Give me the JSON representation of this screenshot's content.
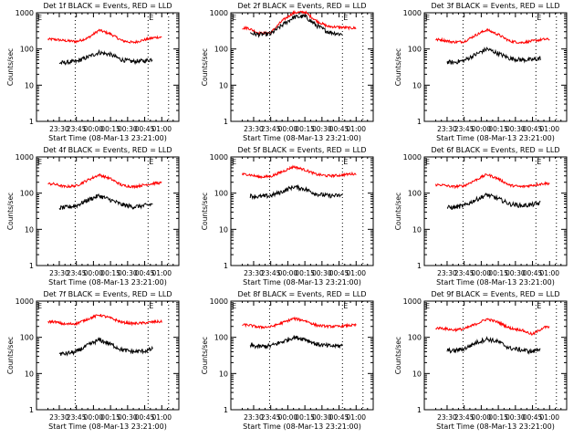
{
  "shared": {
    "ylabel": "Counts/sec",
    "xlabel": "Start Time (08-Mar-13 23:21:00)",
    "x_tick_labels": [
      "23:30",
      "23:45",
      "00:00",
      "00:15",
      "00:30",
      "00:45",
      "01:00"
    ],
    "y_tick_labels": [
      "1",
      "10",
      "100",
      "1000"
    ],
    "marker_label": "E",
    "colors": {
      "events": "#000000",
      "lld": "#ff0000"
    }
  },
  "chart_data": [
    {
      "type": "line",
      "title": "Det 1f BLACK = Events, RED = LLD",
      "x": [
        -5,
        5,
        15,
        25,
        35,
        45,
        55,
        65,
        75,
        85
      ],
      "series": [
        {
          "name": "Events",
          "color": "#000000",
          "x_range": [
            0,
            82
          ],
          "values": [
            40,
            42,
            45,
            60,
            80,
            70,
            50,
            45,
            47,
            55
          ]
        },
        {
          "name": "LLD",
          "color": "#ff0000",
          "x_range": [
            -10,
            90
          ],
          "values": [
            185,
            170,
            160,
            200,
            330,
            260,
            170,
            150,
            180,
            210
          ]
        }
      ],
      "ylim": [
        1,
        1000
      ],
      "ylog": true,
      "dotted_x": [
        -20,
        14,
        78,
        96
      ]
    },
    {
      "type": "line",
      "title": "Det 2f BLACK = Events, RED = LLD",
      "x": [
        -5,
        5,
        15,
        25,
        35,
        45,
        55,
        65,
        75,
        85
      ],
      "series": [
        {
          "name": "Events",
          "color": "#000000",
          "x_range": [
            -3,
            78
          ],
          "values": [
            280,
            250,
            260,
            450,
            750,
            800,
            450,
            300,
            260,
            260
          ]
        },
        {
          "name": "LLD",
          "color": "#ff0000",
          "x_range": [
            -10,
            90
          ],
          "values": [
            380,
            270,
            280,
            600,
            1000,
            1050,
            600,
            420,
            400,
            380
          ]
        }
      ],
      "ylim": [
        1,
        1000
      ],
      "ylog": true,
      "dotted_x": [
        -20,
        14,
        78,
        96
      ]
    },
    {
      "type": "line",
      "title": "Det 3f BLACK = Events, RED = LLD",
      "x": [
        -5,
        5,
        15,
        25,
        35,
        45,
        55,
        65,
        75,
        85
      ],
      "series": [
        {
          "name": "Events",
          "color": "#000000",
          "x_range": [
            0,
            82
          ],
          "values": [
            45,
            42,
            48,
            70,
            100,
            75,
            55,
            50,
            50,
            58
          ]
        },
        {
          "name": "LLD",
          "color": "#ff0000",
          "x_range": [
            -10,
            90
          ],
          "values": [
            180,
            155,
            160,
            240,
            340,
            250,
            165,
            150,
            165,
            185
          ]
        }
      ],
      "ylim": [
        1,
        1000
      ],
      "ylog": true,
      "dotted_x": [
        -20,
        14,
        78,
        96
      ]
    },
    {
      "type": "line",
      "title": "Det 4f BLACK = Events, RED = LLD",
      "x": [
        -5,
        5,
        15,
        25,
        35,
        45,
        55,
        65,
        75,
        85
      ],
      "series": [
        {
          "name": "Events",
          "color": "#000000",
          "x_range": [
            0,
            82
          ],
          "values": [
            38,
            40,
            45,
            65,
            85,
            65,
            48,
            42,
            45,
            52
          ]
        },
        {
          "name": "LLD",
          "color": "#ff0000",
          "x_range": [
            -10,
            90
          ],
          "values": [
            180,
            150,
            160,
            230,
            320,
            250,
            165,
            150,
            170,
            190
          ]
        }
      ],
      "ylim": [
        1,
        1000
      ],
      "ylog": true,
      "dotted_x": [
        -20,
        14,
        78,
        96
      ]
    },
    {
      "type": "line",
      "title": "Det 5f BLACK = Events, RED = LLD",
      "x": [
        -5,
        5,
        15,
        25,
        35,
        45,
        55,
        65,
        75,
        85
      ],
      "series": [
        {
          "name": "Events",
          "color": "#000000",
          "x_range": [
            -3,
            78
          ],
          "values": [
            85,
            80,
            85,
            110,
            150,
            130,
            95,
            85,
            85,
            100
          ]
        },
        {
          "name": "LLD",
          "color": "#ff0000",
          "x_range": [
            -10,
            90
          ],
          "values": [
            330,
            280,
            290,
            390,
            540,
            440,
            330,
            300,
            310,
            340
          ]
        }
      ],
      "ylim": [
        1,
        1000
      ],
      "ylog": true,
      "dotted_x": [
        -20,
        14,
        78,
        96
      ]
    },
    {
      "type": "line",
      "title": "Det 6f BLACK = Events, RED = LLD",
      "x": [
        -5,
        5,
        15,
        25,
        35,
        45,
        55,
        65,
        75,
        85
      ],
      "series": [
        {
          "name": "Events",
          "color": "#000000",
          "x_range": [
            0,
            82
          ],
          "values": [
            40,
            40,
            45,
            65,
            90,
            70,
            50,
            45,
            48,
            55
          ]
        },
        {
          "name": "LLD",
          "color": "#ff0000",
          "x_range": [
            -10,
            90
          ],
          "values": [
            170,
            150,
            160,
            230,
            330,
            250,
            165,
            150,
            165,
            185
          ]
        }
      ],
      "ylim": [
        1,
        1000
      ],
      "ylog": true,
      "dotted_x": [
        -20,
        14,
        78,
        96
      ]
    },
    {
      "type": "line",
      "title": "Det 7f BLACK = Events, RED = LLD",
      "x": [
        -5,
        5,
        15,
        25,
        35,
        45,
        55,
        65,
        75,
        85
      ],
      "series": [
        {
          "name": "Events",
          "color": "#000000",
          "x_range": [
            0,
            82
          ],
          "values": [
            35,
            35,
            40,
            60,
            85,
            65,
            45,
            40,
            42,
            50
          ]
        },
        {
          "name": "LLD",
          "color": "#ff0000",
          "x_range": [
            -10,
            90
          ],
          "values": [
            270,
            230,
            240,
            320,
            420,
            340,
            260,
            240,
            250,
            270
          ]
        }
      ],
      "ylim": [
        1,
        1000
      ],
      "ylog": true,
      "dotted_x": [
        -20,
        14,
        78,
        96
      ]
    },
    {
      "type": "line",
      "title": "Det 8f BLACK = Events, RED = LLD",
      "x": [
        -5,
        5,
        15,
        25,
        35,
        45,
        55,
        65,
        75,
        85
      ],
      "series": [
        {
          "name": "Events",
          "color": "#000000",
          "x_range": [
            -3,
            78
          ],
          "values": [
            60,
            55,
            58,
            75,
            100,
            90,
            65,
            58,
            58,
            62
          ]
        },
        {
          "name": "LLD",
          "color": "#ff0000",
          "x_range": [
            -10,
            90
          ],
          "values": [
            220,
            190,
            195,
            250,
            330,
            290,
            215,
            200,
            200,
            215
          ]
        }
      ],
      "ylim": [
        1,
        1000
      ],
      "ylog": true,
      "dotted_x": [
        -20,
        14,
        78,
        96
      ]
    },
    {
      "type": "line",
      "title": "Det 9f BLACK = Events, RED = LLD",
      "x": [
        -5,
        5,
        15,
        25,
        35,
        45,
        55,
        65,
        75,
        85
      ],
      "series": [
        {
          "name": "Events",
          "color": "#000000",
          "x_range": [
            0,
            82
          ],
          "values": [
            45,
            42,
            48,
            70,
            90,
            75,
            50,
            45,
            40,
            55
          ]
        },
        {
          "name": "LLD",
          "color": "#ff0000",
          "x_range": [
            -10,
            90
          ],
          "values": [
            180,
            160,
            170,
            230,
            320,
            260,
            180,
            160,
            120,
            190
          ]
        }
      ],
      "ylim": [
        1,
        1000
      ],
      "ylog": true,
      "dotted_x": [
        -20,
        14,
        78,
        96
      ]
    }
  ]
}
